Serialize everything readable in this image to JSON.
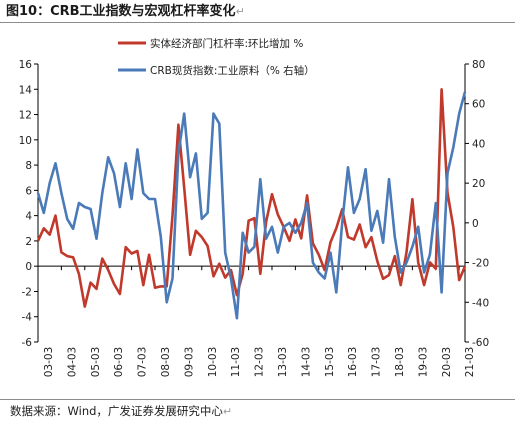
{
  "header": {
    "title": "图10：CRB工业指数与宏观杠杆率变化",
    "return_mark": "↵"
  },
  "footer": {
    "source": "数据来源：Wind，广发证券发展研究中心",
    "return_mark": "↵"
  },
  "colors": {
    "leverage": "#c0392b",
    "crb": "#4a7ab8",
    "axis": "#000000"
  },
  "chart_data": {
    "type": "line",
    "title": "",
    "grid": false,
    "legend_position": "top",
    "x_tick_labels": [
      "03-03",
      "04-03",
      "05-03",
      "06-03",
      "07-03",
      "08-03",
      "09-03",
      "10-03",
      "11-03",
      "12-03",
      "13-03",
      "14-03",
      "15-03",
      "16-03",
      "17-03",
      "18-03",
      "19-03",
      "20-03",
      "21-03"
    ],
    "x_range": [
      2003.0,
      2021.25
    ],
    "y_left": {
      "range": [
        -6,
        16
      ],
      "ticks": [
        -6,
        -4,
        -2,
        0,
        2,
        4,
        6,
        8,
        10,
        12,
        14,
        16
      ]
    },
    "y_right": {
      "range": [
        -60,
        80
      ],
      "ticks": [
        -60,
        -40,
        -20,
        0,
        20,
        40,
        60,
        80
      ]
    },
    "series": [
      {
        "name": "实体经济部门杠杆率:环比增加 %",
        "axis": "left",
        "color": "#c0392b",
        "points": [
          [
            2003.0,
            2.0
          ],
          [
            2003.25,
            3.0
          ],
          [
            2003.5,
            2.5
          ],
          [
            2003.75,
            4.0
          ],
          [
            2004.0,
            1.1
          ],
          [
            2004.25,
            0.8
          ],
          [
            2004.5,
            0.7
          ],
          [
            2004.75,
            -0.6
          ],
          [
            2005.0,
            -3.2
          ],
          [
            2005.25,
            -1.3
          ],
          [
            2005.5,
            -1.8
          ],
          [
            2005.75,
            0.6
          ],
          [
            2006.0,
            -0.3
          ],
          [
            2006.25,
            -1.4
          ],
          [
            2006.5,
            -2.2
          ],
          [
            2006.75,
            1.5
          ],
          [
            2007.0,
            1.0
          ],
          [
            2007.25,
            1.2
          ],
          [
            2007.5,
            -1.5
          ],
          [
            2007.75,
            0.9
          ],
          [
            2008.0,
            -1.7
          ],
          [
            2008.25,
            -1.6
          ],
          [
            2008.5,
            -1.6
          ],
          [
            2008.75,
            4.0
          ],
          [
            2009.0,
            11.2
          ],
          [
            2009.25,
            6.2
          ],
          [
            2009.5,
            0.9
          ],
          [
            2009.75,
            2.8
          ],
          [
            2010.0,
            2.3
          ],
          [
            2010.25,
            1.6
          ],
          [
            2010.5,
            -0.8
          ],
          [
            2010.75,
            0.2
          ],
          [
            2011.0,
            -0.9
          ],
          [
            2011.25,
            -0.3
          ],
          [
            2011.5,
            -2.3
          ],
          [
            2011.75,
            -0.6
          ],
          [
            2012.0,
            3.6
          ],
          [
            2012.25,
            3.8
          ],
          [
            2012.5,
            -0.6
          ],
          [
            2012.75,
            3.5
          ],
          [
            2013.0,
            5.7
          ],
          [
            2013.25,
            4.1
          ],
          [
            2013.5,
            3.1
          ],
          [
            2013.75,
            2.0
          ],
          [
            2014.0,
            3.7
          ],
          [
            2014.25,
            2.2
          ],
          [
            2014.5,
            5.6
          ],
          [
            2014.75,
            1.8
          ],
          [
            2015.0,
            0.9
          ],
          [
            2015.25,
            -0.3
          ],
          [
            2015.5,
            1.9
          ],
          [
            2015.75,
            3.0
          ],
          [
            2016.0,
            4.5
          ],
          [
            2016.25,
            2.3
          ],
          [
            2016.5,
            2.1
          ],
          [
            2016.75,
            3.3
          ],
          [
            2017.0,
            1.5
          ],
          [
            2017.25,
            2.3
          ],
          [
            2017.5,
            0.4
          ],
          [
            2017.75,
            -1.0
          ],
          [
            2018.0,
            -0.7
          ],
          [
            2018.25,
            0.8
          ],
          [
            2018.5,
            -1.5
          ],
          [
            2018.75,
            1.1
          ],
          [
            2019.0,
            5.3
          ],
          [
            2019.25,
            0.3
          ],
          [
            2019.5,
            -1.5
          ],
          [
            2019.75,
            0.3
          ],
          [
            2020.0,
            -0.2
          ],
          [
            2020.25,
            14.0
          ],
          [
            2020.5,
            5.8
          ],
          [
            2020.75,
            3.1
          ],
          [
            2021.0,
            -1.1
          ],
          [
            2021.25,
            0.0
          ]
        ]
      },
      {
        "name": "CRB现货指数:工业原料（% 右轴）",
        "axis": "right",
        "color": "#4a7ab8",
        "points": [
          [
            2003.0,
            15
          ],
          [
            2003.25,
            5
          ],
          [
            2003.5,
            20
          ],
          [
            2003.75,
            30
          ],
          [
            2004.0,
            15
          ],
          [
            2004.25,
            2
          ],
          [
            2004.5,
            -3
          ],
          [
            2004.75,
            10
          ],
          [
            2005.0,
            8
          ],
          [
            2005.25,
            7
          ],
          [
            2005.5,
            -8
          ],
          [
            2005.75,
            15
          ],
          [
            2006.0,
            33
          ],
          [
            2006.25,
            25
          ],
          [
            2006.5,
            8
          ],
          [
            2006.75,
            30
          ],
          [
            2007.0,
            12
          ],
          [
            2007.25,
            37
          ],
          [
            2007.5,
            15
          ],
          [
            2007.75,
            12
          ],
          [
            2008.0,
            12
          ],
          [
            2008.25,
            -7
          ],
          [
            2008.5,
            -40
          ],
          [
            2008.75,
            -28
          ],
          [
            2009.0,
            35
          ],
          [
            2009.25,
            55
          ],
          [
            2009.5,
            23
          ],
          [
            2009.75,
            35
          ],
          [
            2010.0,
            2
          ],
          [
            2010.25,
            5
          ],
          [
            2010.5,
            55
          ],
          [
            2010.75,
            50
          ],
          [
            2011.0,
            -15
          ],
          [
            2011.25,
            -28
          ],
          [
            2011.5,
            -48
          ],
          [
            2011.75,
            -5
          ],
          [
            2012.0,
            -15
          ],
          [
            2012.25,
            -12
          ],
          [
            2012.5,
            22
          ],
          [
            2012.75,
            -8
          ],
          [
            2013.0,
            -2
          ],
          [
            2013.25,
            -15
          ],
          [
            2013.5,
            -2
          ],
          [
            2013.75,
            0
          ],
          [
            2014.0,
            -5
          ],
          [
            2014.25,
            0
          ],
          [
            2014.5,
            10
          ],
          [
            2014.75,
            -20
          ],
          [
            2015.0,
            -25
          ],
          [
            2015.25,
            -28
          ],
          [
            2015.5,
            -15
          ],
          [
            2015.75,
            -35
          ],
          [
            2016.0,
            0
          ],
          [
            2016.25,
            28
          ],
          [
            2016.5,
            5
          ],
          [
            2016.75,
            12
          ],
          [
            2017.0,
            27
          ],
          [
            2017.25,
            -4
          ],
          [
            2017.5,
            6
          ],
          [
            2017.75,
            -10
          ],
          [
            2018.0,
            22
          ],
          [
            2018.25,
            -7
          ],
          [
            2018.5,
            -25
          ],
          [
            2018.75,
            -20
          ],
          [
            2019.0,
            -12
          ],
          [
            2019.25,
            -2
          ],
          [
            2019.5,
            -25
          ],
          [
            2019.75,
            -16
          ],
          [
            2020.0,
            10
          ],
          [
            2020.25,
            -35
          ],
          [
            2020.5,
            25
          ],
          [
            2020.75,
            38
          ],
          [
            2021.0,
            55
          ],
          [
            2021.25,
            66
          ]
        ]
      }
    ]
  }
}
